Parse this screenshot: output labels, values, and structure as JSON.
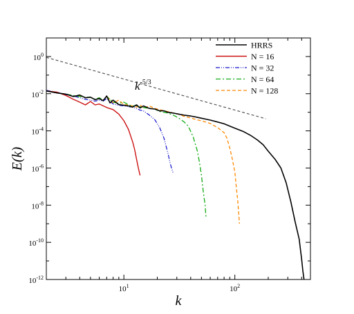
{
  "chart_data": {
    "type": "line",
    "xlabel": "k",
    "ylabel": "E(k)",
    "x_scale": "log",
    "y_scale": "log",
    "xlim": [
      2,
      480
    ],
    "ylim": [
      1e-12,
      10
    ],
    "grid": false,
    "legend_position": "top-right",
    "x_ticks": [
      {
        "value": 10,
        "base": "10",
        "exp": "1"
      },
      {
        "value": 100,
        "base": "10",
        "exp": "2"
      }
    ],
    "y_ticks": [
      {
        "value": 1,
        "base": "10",
        "exp": "0"
      },
      {
        "value": 0.01,
        "base": "10",
        "exp": "-2"
      },
      {
        "value": 0.0001,
        "base": "10",
        "exp": "-4"
      },
      {
        "value": 1e-06,
        "base": "10",
        "exp": "-6"
      },
      {
        "value": 1e-08,
        "base": "10",
        "exp": "-8"
      },
      {
        "value": 1e-10,
        "base": "10",
        "exp": "-10"
      },
      {
        "value": 1e-12,
        "base": "10",
        "exp": "-12"
      }
    ],
    "annotation": {
      "base": "k",
      "exp": "-5/3"
    },
    "reference_line": {
      "slope_label": "-5/3",
      "x": [
        2,
        190
      ],
      "y": [
        0.9,
        0.00045
      ],
      "color": "#555555"
    },
    "series": [
      {
        "name": "HRRS",
        "color": "#000000",
        "x": [
          2.0,
          2.5,
          3.0,
          3.5,
          4.0,
          4.5,
          5.0,
          5.5,
          6.0,
          6.5,
          7.0,
          7.5,
          8.0,
          9.0,
          10.0,
          11.0,
          12.0,
          13.0,
          14.0,
          15.0,
          17.0,
          19.0,
          21.0,
          23.0,
          25.0,
          28.0,
          31.0,
          35.0,
          40.0,
          45.0,
          50.0,
          60.0,
          70.0,
          80.0,
          90.0,
          100.0,
          120.0,
          140.0,
          160.0,
          180.0,
          200.0,
          230.0,
          260.0,
          290.0,
          320.0,
          350.0,
          380.0,
          400.0,
          410.0,
          420.0
        ],
        "y": [
          0.014,
          0.011,
          0.0095,
          0.007,
          0.0085,
          0.006,
          0.0065,
          0.0048,
          0.0055,
          0.0042,
          0.0075,
          0.0032,
          0.0045,
          0.0026,
          0.0024,
          0.0022,
          0.0019,
          0.0025,
          0.0017,
          0.0022,
          0.0016,
          0.0015,
          0.0012,
          0.0012,
          0.001,
          0.0009,
          0.0008,
          0.0007,
          0.00063,
          0.00055,
          0.00048,
          0.00038,
          0.0003,
          0.00024,
          0.00018,
          0.00014,
          9e-05,
          5.5e-05,
          3.2e-05,
          1.8e-05,
          8e-06,
          3e-06,
          1e-06,
          1.6e-07,
          1.5e-08,
          1.2e-09,
          1.5e-10,
          1.2e-11,
          3e-12,
          1e-12
        ]
      },
      {
        "name": "N = 16",
        "color": "#cc1111",
        "x": [
          2.0,
          2.5,
          3.0,
          3.5,
          4.0,
          4.5,
          5.0,
          5.5,
          6.0,
          7.0,
          8.0,
          9.0,
          10.0,
          11.0,
          12.0,
          12.5,
          13.0,
          13.5,
          14.0
        ],
        "y": [
          0.014,
          0.012,
          0.008,
          0.005,
          0.0035,
          0.0025,
          0.0038,
          0.0025,
          0.0028,
          0.0018,
          0.0014,
          0.0008,
          0.00035,
          0.00012,
          2.5e-05,
          1e-05,
          3e-06,
          1e-06,
          4e-07
        ]
      },
      {
        "name": "N = 32",
        "color": "#1111cc",
        "x": [
          2.0,
          2.5,
          3.0,
          3.5,
          4.0,
          4.5,
          5.0,
          5.5,
          6.0,
          6.5,
          7.0,
          8.0,
          9.0,
          10.0,
          11.0,
          12.0,
          13.0,
          14.0,
          15.0,
          17.0,
          19.0,
          21.0,
          23.0,
          24.0,
          25.0,
          26.0,
          27.0,
          28.0
        ],
        "y": [
          0.015,
          0.012,
          0.009,
          0.0075,
          0.006,
          0.005,
          0.0045,
          0.004,
          0.0045,
          0.004,
          0.0055,
          0.0028,
          0.0024,
          0.0022,
          0.002,
          0.0019,
          0.0016,
          0.0013,
          0.0012,
          0.0007,
          0.0004,
          0.00015,
          4e-05,
          1.5e-05,
          6e-06,
          2e-06,
          9e-07,
          5e-07
        ]
      },
      {
        "name": "N = 64",
        "color": "#11aa11",
        "x": [
          2.0,
          2.5,
          3.0,
          3.5,
          4.0,
          4.5,
          5.0,
          5.5,
          6.0,
          6.5,
          7.0,
          8.0,
          9.0,
          10.0,
          11.0,
          12.0,
          13.0,
          14.0,
          15.0,
          17.0,
          19.0,
          21.0,
          23.0,
          25.0,
          28.0,
          31.0,
          35.0,
          38.0,
          42.0,
          46.0,
          48.0,
          50.0,
          52.0,
          54.0,
          55.0
        ],
        "y": [
          0.015,
          0.011,
          0.0095,
          0.008,
          0.007,
          0.0065,
          0.0065,
          0.005,
          0.006,
          0.0045,
          0.007,
          0.0035,
          0.003,
          0.0035,
          0.0025,
          0.0022,
          0.0023,
          0.002,
          0.0018,
          0.0016,
          0.0015,
          0.0011,
          0.001,
          0.0009,
          0.0007,
          0.0005,
          0.0003,
          0.00018,
          5e-05,
          8e-06,
          2e-06,
          4e-07,
          5e-08,
          1e-08,
          2e-09
        ]
      },
      {
        "name": "N = 128",
        "color": "#ff8800",
        "x": [
          2.0,
          2.5,
          3.0,
          3.5,
          4.0,
          4.5,
          5.0,
          5.5,
          6.0,
          6.5,
          7.0,
          8.0,
          9.0,
          10.0,
          11.0,
          12.0,
          13.0,
          14.0,
          15.0,
          17.0,
          19.0,
          21.0,
          23.0,
          25.0,
          28.0,
          31.0,
          35.0,
          40.0,
          45.0,
          50.0,
          60.0,
          70.0,
          80.0,
          85.0,
          90.0,
          95.0,
          100.0,
          103.0,
          106.0,
          108.0,
          110.0
        ],
        "y": [
          0.014,
          0.011,
          0.0095,
          0.007,
          0.008,
          0.006,
          0.0065,
          0.0048,
          0.0055,
          0.0042,
          0.0075,
          0.0032,
          0.0045,
          0.0026,
          0.0024,
          0.0022,
          0.0019,
          0.0025,
          0.0017,
          0.0022,
          0.0016,
          0.0014,
          0.0012,
          0.0011,
          0.0009,
          0.0008,
          0.0006,
          0.0005,
          0.0004,
          0.00035,
          0.00025,
          0.00015,
          8e-05,
          4e-05,
          1.2e-05,
          3e-06,
          6e-07,
          1e-07,
          2e-08,
          5e-09,
          1e-09
        ]
      }
    ]
  }
}
